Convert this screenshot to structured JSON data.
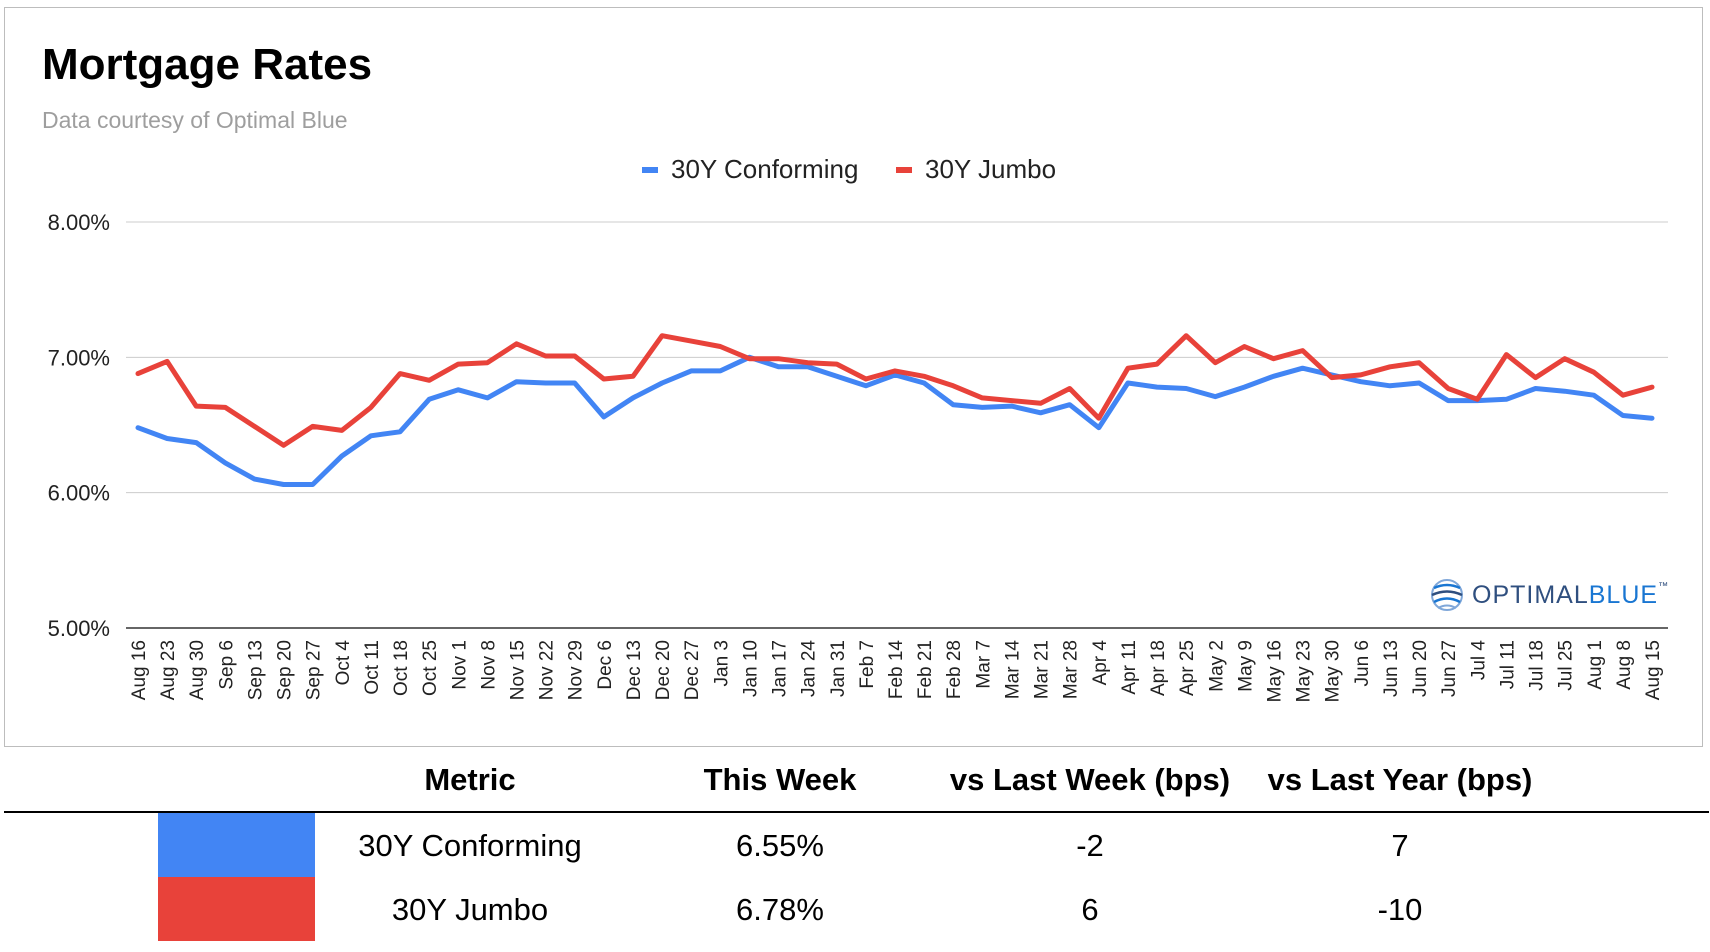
{
  "header": {
    "title": "Mortgage Rates",
    "subtitle": "Data courtesy of Optimal Blue"
  },
  "logo": {
    "text_part1": "OPTIMAL",
    "text_part2": "BLUE",
    "tm": "™"
  },
  "colors": {
    "conforming": "#4285f4",
    "jumbo": "#e8423a"
  },
  "chart_data": {
    "type": "line",
    "categories": [
      "Aug 16",
      "Aug 23",
      "Aug 30",
      "Sep 6",
      "Sep 13",
      "Sep 20",
      "Sep 27",
      "Oct 4",
      "Oct 11",
      "Oct 18",
      "Oct 25",
      "Nov 1",
      "Nov 8",
      "Nov 15",
      "Nov 22",
      "Nov 29",
      "Dec 6",
      "Dec 13",
      "Dec 20",
      "Dec 27",
      "Jan 3",
      "Jan 10",
      "Jan 17",
      "Jan 24",
      "Jan 31",
      "Feb 7",
      "Feb 14",
      "Feb 21",
      "Feb 28",
      "Mar 7",
      "Mar 14",
      "Mar 21",
      "Mar 28",
      "Apr 4",
      "Apr 11",
      "Apr 18",
      "Apr 25",
      "May 2",
      "May 9",
      "May 16",
      "May 23",
      "May 30",
      "Jun 6",
      "Jun 13",
      "Jun 20",
      "Jun 27",
      "Jul 4",
      "Jul 11",
      "Jul 18",
      "Jul 25",
      "Aug 1",
      "Aug 8",
      "Aug 15"
    ],
    "series": [
      {
        "name": "30Y Conforming",
        "values": [
          6.48,
          6.4,
          6.37,
          6.22,
          6.1,
          6.06,
          6.06,
          6.27,
          6.42,
          6.45,
          6.69,
          6.76,
          6.7,
          6.82,
          6.81,
          6.81,
          6.56,
          6.7,
          6.81,
          6.9,
          6.9,
          7.0,
          6.93,
          6.93,
          6.86,
          6.79,
          6.87,
          6.81,
          6.65,
          6.63,
          6.64,
          6.59,
          6.65,
          6.48,
          6.81,
          6.78,
          6.77,
          6.71,
          6.78,
          6.86,
          6.92,
          6.87,
          6.82,
          6.79,
          6.81,
          6.68,
          6.68,
          6.69,
          6.77,
          6.75,
          6.72,
          6.57,
          6.55
        ]
      },
      {
        "name": "30Y Jumbo",
        "values": [
          6.88,
          6.97,
          6.64,
          6.63,
          6.49,
          6.35,
          6.49,
          6.46,
          6.63,
          6.88,
          6.83,
          6.95,
          6.96,
          7.1,
          7.01,
          7.01,
          6.84,
          6.86,
          7.16,
          7.12,
          7.08,
          6.99,
          6.99,
          6.96,
          6.95,
          6.84,
          6.9,
          6.86,
          6.79,
          6.7,
          6.68,
          6.66,
          6.77,
          6.55,
          6.92,
          6.95,
          7.16,
          6.96,
          7.08,
          6.99,
          7.05,
          6.85,
          6.87,
          6.93,
          6.96,
          6.77,
          6.69,
          7.02,
          6.85,
          6.99,
          6.89,
          6.72,
          6.78
        ]
      }
    ],
    "y_ticks": [
      "8.00%",
      "7.00%",
      "6.00%",
      "5.00%"
    ],
    "y_tick_values": [
      8,
      7,
      6,
      5
    ],
    "ylim": [
      5,
      8
    ],
    "grid": true,
    "legend": "top-center",
    "xlabel": "",
    "ylabel": ""
  },
  "table": {
    "headers": [
      "Metric",
      "This Week",
      "vs Last Week (bps)",
      "vs Last Year (bps)"
    ],
    "rows": [
      {
        "metric": "30Y Conforming",
        "this_week": "6.55%",
        "vs_last_week": "-2",
        "vs_last_year": "7",
        "color": "#4285f4"
      },
      {
        "metric": "30Y Jumbo",
        "this_week": "6.78%",
        "vs_last_week": "6",
        "vs_last_year": "-10",
        "color": "#e8423a"
      }
    ]
  }
}
